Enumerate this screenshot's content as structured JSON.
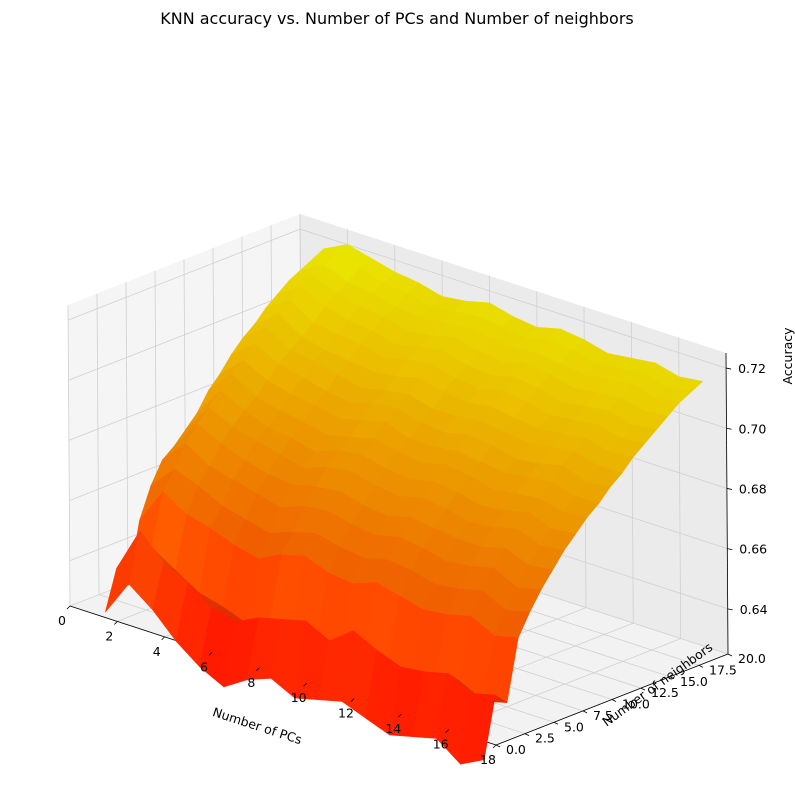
{
  "chart_data": {
    "type": "surface3d",
    "title": "KNN accuracy vs. Number of PCs and Number of neighbors",
    "xlabel": "Number of PCs",
    "ylabel": "Number of neighbors",
    "zlabel": "Accuracy",
    "xlim": [
      0,
      18
    ],
    "ylim": [
      0.0,
      20.0
    ],
    "zlim": [
      0.625,
      0.725
    ],
    "x_ticks": [
      "0",
      "2",
      "4",
      "6",
      "8",
      "10",
      "12",
      "14",
      "16",
      "18"
    ],
    "y_ticks": [
      "0.0",
      "2.5",
      "5.0",
      "7.5",
      "10.0",
      "12.5",
      "15.0",
      "17.5",
      "20.0"
    ],
    "z_ticks": [
      "0.64",
      "0.66",
      "0.68",
      "0.70",
      "0.72"
    ],
    "colormap": "autumn",
    "colors": {
      "low": "#ff0000",
      "high": "#ffff00"
    },
    "grid": true,
    "pcs": [
      1,
      2,
      3,
      4,
      5,
      6,
      7,
      8,
      9,
      10,
      11,
      12,
      13,
      14,
      15,
      16,
      17
    ],
    "neighbors": [
      1,
      2,
      3,
      4,
      5,
      6,
      7,
      8,
      9,
      10,
      11,
      12,
      13,
      14,
      15,
      16,
      17,
      18,
      19,
      20
    ],
    "accuracy": [
      [
        0.624,
        0.637,
        0.63,
        0.65,
        0.66,
        0.667,
        0.67,
        0.674,
        0.678,
        0.684,
        0.688,
        0.693,
        0.697,
        0.7,
        0.704,
        0.707,
        0.71,
        0.712,
        0.714,
        0.716
      ],
      [
        0.636,
        0.652,
        0.645,
        0.662,
        0.668,
        0.675,
        0.68,
        0.684,
        0.688,
        0.692,
        0.695,
        0.699,
        0.703,
        0.706,
        0.709,
        0.712,
        0.714,
        0.716,
        0.719,
        0.72
      ],
      [
        0.63,
        0.644,
        0.64,
        0.657,
        0.665,
        0.67,
        0.676,
        0.68,
        0.684,
        0.687,
        0.691,
        0.695,
        0.698,
        0.701,
        0.704,
        0.708,
        0.711,
        0.713,
        0.716,
        0.718
      ],
      [
        0.622,
        0.64,
        0.635,
        0.655,
        0.661,
        0.668,
        0.673,
        0.678,
        0.681,
        0.685,
        0.689,
        0.693,
        0.697,
        0.699,
        0.703,
        0.706,
        0.709,
        0.712,
        0.714,
        0.716
      ],
      [
        0.616,
        0.634,
        0.633,
        0.652,
        0.659,
        0.666,
        0.671,
        0.676,
        0.68,
        0.684,
        0.688,
        0.691,
        0.695,
        0.698,
        0.702,
        0.705,
        0.708,
        0.71,
        0.713,
        0.715
      ],
      [
        0.612,
        0.632,
        0.63,
        0.65,
        0.657,
        0.664,
        0.67,
        0.674,
        0.678,
        0.682,
        0.686,
        0.69,
        0.693,
        0.697,
        0.7,
        0.703,
        0.706,
        0.709,
        0.711,
        0.713
      ],
      [
        0.617,
        0.636,
        0.634,
        0.654,
        0.66,
        0.667,
        0.672,
        0.677,
        0.681,
        0.684,
        0.688,
        0.692,
        0.695,
        0.698,
        0.702,
        0.705,
        0.707,
        0.71,
        0.712,
        0.714
      ],
      [
        0.62,
        0.638,
        0.636,
        0.656,
        0.662,
        0.668,
        0.673,
        0.678,
        0.682,
        0.686,
        0.69,
        0.693,
        0.696,
        0.7,
        0.703,
        0.706,
        0.709,
        0.711,
        0.713,
        0.716
      ],
      [
        0.616,
        0.64,
        0.633,
        0.653,
        0.66,
        0.666,
        0.671,
        0.676,
        0.68,
        0.684,
        0.687,
        0.691,
        0.694,
        0.698,
        0.701,
        0.704,
        0.707,
        0.71,
        0.712,
        0.714
      ],
      [
        0.618,
        0.636,
        0.632,
        0.652,
        0.659,
        0.665,
        0.67,
        0.675,
        0.679,
        0.683,
        0.687,
        0.69,
        0.694,
        0.697,
        0.7,
        0.703,
        0.706,
        0.709,
        0.711,
        0.713
      ],
      [
        0.62,
        0.642,
        0.635,
        0.655,
        0.661,
        0.667,
        0.672,
        0.677,
        0.681,
        0.685,
        0.688,
        0.692,
        0.695,
        0.698,
        0.702,
        0.705,
        0.708,
        0.71,
        0.713,
        0.715
      ],
      [
        0.617,
        0.638,
        0.633,
        0.653,
        0.66,
        0.666,
        0.671,
        0.676,
        0.68,
        0.684,
        0.687,
        0.691,
        0.694,
        0.697,
        0.701,
        0.704,
        0.707,
        0.709,
        0.712,
        0.714
      ],
      [
        0.614,
        0.635,
        0.631,
        0.651,
        0.658,
        0.664,
        0.67,
        0.674,
        0.678,
        0.682,
        0.686,
        0.689,
        0.693,
        0.696,
        0.699,
        0.702,
        0.705,
        0.708,
        0.71,
        0.712
      ],
      [
        0.616,
        0.636,
        0.632,
        0.652,
        0.659,
        0.665,
        0.67,
        0.675,
        0.679,
        0.683,
        0.687,
        0.69,
        0.694,
        0.697,
        0.7,
        0.703,
        0.706,
        0.709,
        0.711,
        0.713
      ],
      [
        0.618,
        0.638,
        0.634,
        0.654,
        0.661,
        0.667,
        0.672,
        0.677,
        0.681,
        0.684,
        0.688,
        0.692,
        0.695,
        0.698,
        0.701,
        0.704,
        0.707,
        0.71,
        0.712,
        0.714
      ],
      [
        0.612,
        0.634,
        0.63,
        0.65,
        0.657,
        0.663,
        0.669,
        0.674,
        0.678,
        0.682,
        0.686,
        0.689,
        0.693,
        0.696,
        0.699,
        0.702,
        0.705,
        0.708,
        0.71,
        0.712
      ],
      [
        0.616,
        0.636,
        0.632,
        0.652,
        0.659,
        0.665,
        0.67,
        0.675,
        0.679,
        0.683,
        0.686,
        0.69,
        0.693,
        0.697,
        0.7,
        0.703,
        0.706,
        0.709,
        0.711,
        0.713
      ]
    ]
  }
}
